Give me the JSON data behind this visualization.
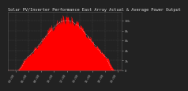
{
  "title": "Solar PV/Inverter Performance East Array Actual & Average Power Output",
  "bg_color": "#222222",
  "plot_bg_color": "#222222",
  "grid_color": "#666666",
  "fill_color": "#ff0000",
  "line_color": "#ff2222",
  "avg_line_color": "#ffffff",
  "num_points": 144,
  "peak_index": 74,
  "sigma": 30,
  "ylabel_color": "#aaaaaa",
  "xlabel_color": "#aaaaaa",
  "title_color": "#dddddd",
  "title_fontsize": 3.8,
  "tick_fontsize": 3.0,
  "ylim": [
    0,
    1.18
  ],
  "y_ticks": [
    0.0,
    0.2,
    0.4,
    0.6,
    0.8,
    1.0
  ],
  "y_tick_labels": [
    "0",
    "2k",
    "4k",
    "6k",
    "8k",
    "10k"
  ],
  "x_tick_positions": [
    10,
    26,
    42,
    58,
    74,
    90,
    106,
    122,
    138
  ],
  "x_tick_labels": [
    "04:00",
    "06:00",
    "08:00",
    "10:00",
    "12:00",
    "14:00",
    "16:00",
    "18:00",
    "20:00"
  ],
  "noise_seed": 42,
  "noise_scale": 0.08
}
